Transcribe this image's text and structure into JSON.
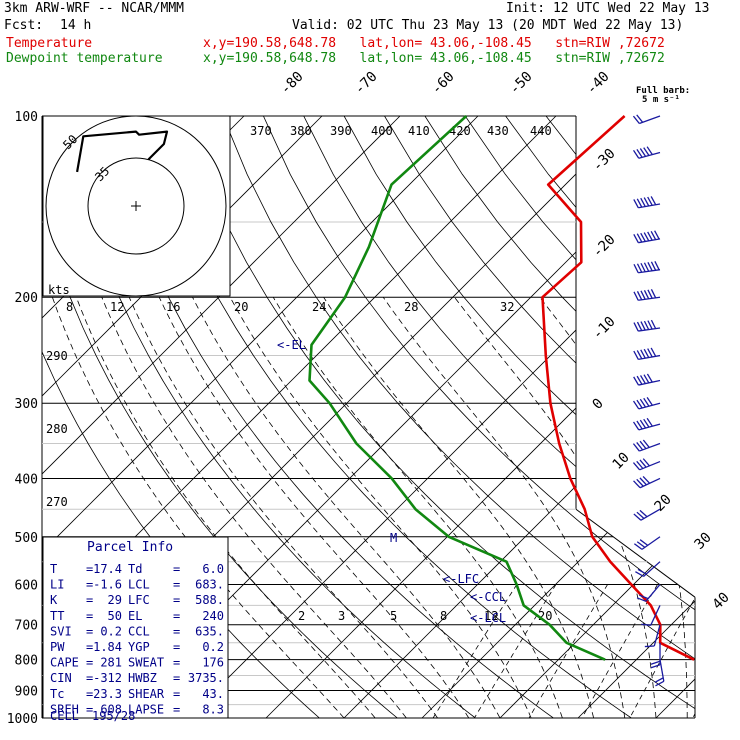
{
  "header": {
    "model": "3km ARW-WRF -- NCAR/MMM",
    "init": "Init: 12 UTC Wed 22 May 13",
    "fcst_label": "Fcst:",
    "fcst_value": "14 h",
    "valid": "Valid: 02 UTC Thu 23 May 13 (20 MDT Wed 22 May 13)",
    "temp_legend": "Temperature",
    "dew_legend": "Dewpoint temperature",
    "temp_loc": "x,y=190.58,648.78   lat,lon= 43.06,-108.45   stn=RIW ,72672",
    "dew_loc": "x,y=190.58,648.78   lat,lon= 43.06,-108.45   stn=RIW ,72672",
    "barb_legend_1": "Full barb:",
    "barb_legend_2": "5 m s⁻¹"
  },
  "chart_data": {
    "type": "line",
    "title": "",
    "ylabel": "",
    "pressure_levels": [
      100,
      200,
      300,
      400,
      500,
      600,
      700,
      800,
      900,
      1000
    ],
    "ylim": [
      1000,
      100
    ],
    "isotherm_labels": [
      "-80",
      "-70",
      "-60",
      "-50",
      "-40",
      "-30",
      "-20",
      "-10",
      "0",
      "10",
      "20",
      "30",
      "40"
    ],
    "theta_e_labels": [
      "370",
      "380",
      "390",
      "400",
      "410",
      "420",
      "430",
      "440"
    ],
    "theta_labels": [
      "290",
      "280",
      "270"
    ],
    "mixing_ratio_labels": [
      "2",
      "3",
      "5",
      "8",
      "12",
      "20"
    ],
    "series": [
      {
        "name": "Temperature",
        "color": "#e00000",
        "points": [
          [
            100,
            -61.2
          ],
          [
            130,
            -62.2
          ],
          [
            150,
            -53.2
          ],
          [
            175,
            -48.0
          ],
          [
            200,
            -48.5
          ],
          [
            250,
            -40.6
          ],
          [
            300,
            -33.9
          ],
          [
            350,
            -27.6
          ],
          [
            400,
            -21.7
          ],
          [
            450,
            -15.9
          ],
          [
            500,
            -11.4
          ],
          [
            550,
            -5.9
          ],
          [
            600,
            -0.3
          ],
          [
            650,
            4.9
          ],
          [
            700,
            8.6
          ],
          [
            750,
            10.9
          ],
          [
            800,
            17.4
          ]
        ]
      },
      {
        "name": "Dewpoint temperature",
        "color": "#118811",
        "points": [
          [
            100,
            -81.5
          ],
          [
            130,
            -82.3
          ],
          [
            165,
            -77.2
          ],
          [
            200,
            -73.8
          ],
          [
            240,
            -72.0
          ],
          [
            275,
            -67.7
          ],
          [
            300,
            -62.2
          ],
          [
            350,
            -53.6
          ],
          [
            400,
            -44.6
          ],
          [
            450,
            -37.6
          ],
          [
            500,
            -29.8
          ],
          [
            550,
            -19.2
          ],
          [
            600,
            -15.0
          ],
          [
            650,
            -11.4
          ],
          [
            700,
            -5.6
          ],
          [
            750,
            -1.1
          ],
          [
            800,
            6.0
          ]
        ]
      }
    ],
    "wind_barbs": [
      {
        "p": 100,
        "dir": 250,
        "spd": 10
      },
      {
        "p": 115,
        "dir": 255,
        "spd": 25
      },
      {
        "p": 140,
        "dir": 260,
        "spd": 30
      },
      {
        "p": 160,
        "dir": 260,
        "spd": 35
      },
      {
        "p": 180,
        "dir": 262,
        "spd": 35
      },
      {
        "p": 200,
        "dir": 262,
        "spd": 30
      },
      {
        "p": 225,
        "dir": 262,
        "spd": 30
      },
      {
        "p": 250,
        "dir": 260,
        "spd": 30
      },
      {
        "p": 275,
        "dir": 258,
        "spd": 28
      },
      {
        "p": 300,
        "dir": 255,
        "spd": 25
      },
      {
        "p": 325,
        "dir": 255,
        "spd": 25
      },
      {
        "p": 350,
        "dir": 250,
        "spd": 22
      },
      {
        "p": 375,
        "dir": 248,
        "spd": 20
      },
      {
        "p": 400,
        "dir": 245,
        "spd": 20
      },
      {
        "p": 450,
        "dir": 240,
        "spd": 17
      },
      {
        "p": 500,
        "dir": 235,
        "spd": 15
      },
      {
        "p": 550,
        "dir": 228,
        "spd": 12
      },
      {
        "p": 600,
        "dir": 220,
        "spd": 10
      },
      {
        "p": 650,
        "dir": 205,
        "spd": 8
      },
      {
        "p": 700,
        "dir": 195,
        "spd": 8
      },
      {
        "p": 750,
        "dir": 180,
        "spd": 10
      },
      {
        "p": 800,
        "dir": 170,
        "spd": 12
      }
    ],
    "annotations": [
      "<-EL",
      "<-LFC",
      "<-CCL",
      "<-LCL",
      "M"
    ],
    "hodograph": {
      "units_label": "kts",
      "ring_labels": [
        "50",
        "35"
      ],
      "speed_axis_labels": [
        "8",
        "12",
        "16",
        "20",
        "24",
        "28",
        "32"
      ],
      "points": [
        [
          -38,
          22
        ],
        [
          -34,
          45
        ],
        [
          0,
          48
        ],
        [
          2,
          46
        ],
        [
          20,
          48
        ],
        [
          18,
          40
        ],
        [
          8,
          30
        ]
      ]
    }
  },
  "parcel_info": {
    "title": "Parcel Info",
    "rows": [
      [
        {
          "label": "T",
          "value": "17.4"
        },
        {
          "label": "Td",
          "value": "6.0"
        }
      ],
      [
        {
          "label": "LI",
          "value": "-1.6"
        },
        {
          "label": "LCL",
          "value": "683."
        }
      ],
      [
        {
          "label": "K",
          "value": "29"
        },
        {
          "label": "LFC",
          "value": "588."
        }
      ],
      [
        {
          "label": "TT",
          "value": "50"
        },
        {
          "label": "EL",
          "value": "240"
        }
      ],
      [
        {
          "label": "SVI",
          "value": "0.2"
        },
        {
          "label": "CCL",
          "value": "635."
        }
      ],
      [
        {
          "label": "PW",
          "value": "1.84"
        },
        {
          "label": "YGP",
          "value": "0.2"
        }
      ],
      [
        {
          "label": "CAPE",
          "value": "281"
        },
        {
          "label": "SWEAT",
          "value": "176"
        }
      ],
      [
        {
          "label": "CIN",
          "value": "-312"
        },
        {
          "label": "HWBZ",
          "value": "3735."
        }
      ],
      [
        {
          "label": "Tc",
          "value": "23.3"
        },
        {
          "label": "SHEAR",
          "value": "43."
        }
      ],
      [
        {
          "label": "SREH",
          "value": "608"
        },
        {
          "label": "LAPSE",
          "value": "8.3"
        }
      ]
    ],
    "cell_label": "CELL",
    "cell_value": "195/28"
  }
}
